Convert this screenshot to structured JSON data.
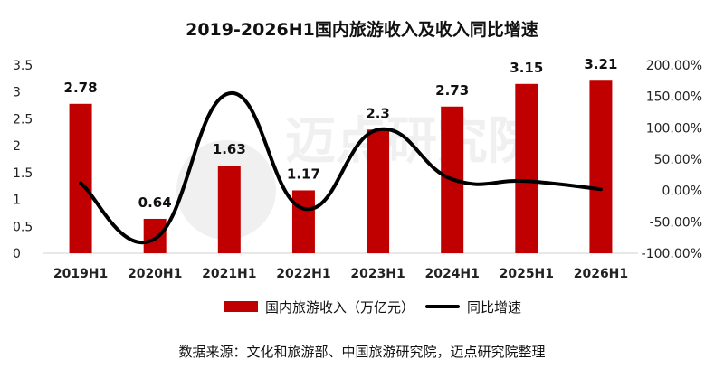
{
  "title": "2019-2026H1国内旅游收入及收入同比增速",
  "source": "数据来源：文化和旅游部、中国旅游研究院，迈点研究院整理",
  "watermark": "迈点研究院",
  "colors": {
    "bar": "#c00000",
    "line": "#000000",
    "axis": "#d9d9d9"
  },
  "chart_data": {
    "type": "bar",
    "categories": [
      "2019H1",
      "2020H1",
      "2021H1",
      "2022H1",
      "2023H1",
      "2024H1",
      "2025H1",
      "2026H1"
    ],
    "series": [
      {
        "name": "国内旅游收入（万亿元）",
        "type": "bar",
        "axis": "left",
        "values": [
          2.78,
          0.64,
          1.63,
          1.17,
          2.3,
          2.73,
          3.15,
          3.21
        ],
        "labels": [
          "2.78",
          "0.64",
          "1.63",
          "1.17",
          "2.3",
          "2.73",
          "3.15",
          "3.21"
        ]
      },
      {
        "name": "同比增速",
        "type": "line",
        "smooth": true,
        "axis": "right",
        "values": [
          12,
          -77,
          155,
          -29,
          97,
          18,
          15,
          2
        ]
      }
    ],
    "y_left": {
      "ylim": [
        0,
        3.5
      ],
      "ticks": [
        "0",
        "0.5",
        "1",
        "1.5",
        "2",
        "2.5",
        "3",
        "3.5"
      ]
    },
    "y_right": {
      "ylim": [
        -100,
        200
      ],
      "ticks": [
        "-100.00%",
        "-50.00%",
        "0.00%",
        "50.00%",
        "100.00%",
        "150.00%",
        "200.00%"
      ]
    },
    "grid": false,
    "legend": "bottom"
  }
}
